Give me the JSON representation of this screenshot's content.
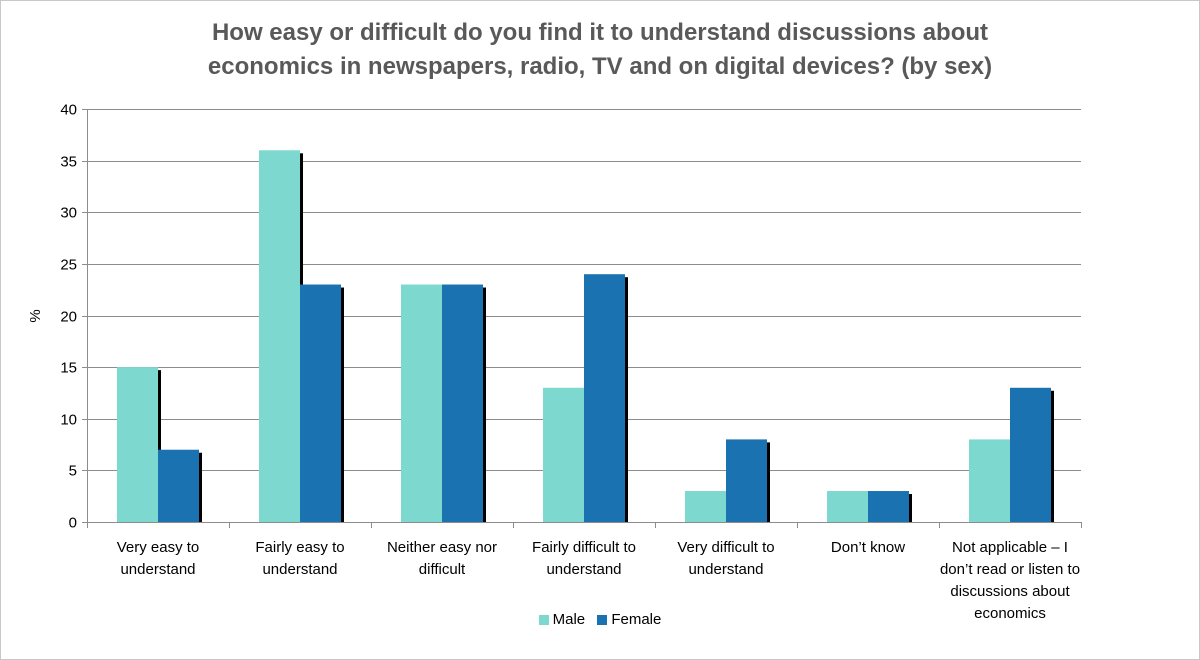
{
  "chart_data": {
    "type": "bar",
    "title": "How easy or difficult do you find it to understand discussions about\neconomics in newspapers, radio, TV and on digital devices? (by sex)",
    "xlabel": "",
    "ylabel": "%",
    "ylim": [
      0,
      40
    ],
    "yticks": [
      "0",
      "5",
      "10",
      "15",
      "20",
      "25",
      "30",
      "35",
      "40"
    ],
    "grid": true,
    "legend_position": "bottom",
    "categories": [
      "Very easy to understand",
      "Fairly easy to understand",
      "Neither easy nor difficult",
      "Fairly difficult to understand",
      "Very difficult to understand",
      "Don’t know",
      "Not applicable – I don’t read or listen to discussions about economics"
    ],
    "series": [
      {
        "name": "Male",
        "color": "#7dd8d0",
        "values": [
          15,
          36,
          23,
          13,
          3,
          3,
          8
        ]
      },
      {
        "name": "Female",
        "color": "#1b72b0",
        "values": [
          7,
          23,
          23,
          24,
          8,
          3,
          13
        ]
      }
    ]
  }
}
